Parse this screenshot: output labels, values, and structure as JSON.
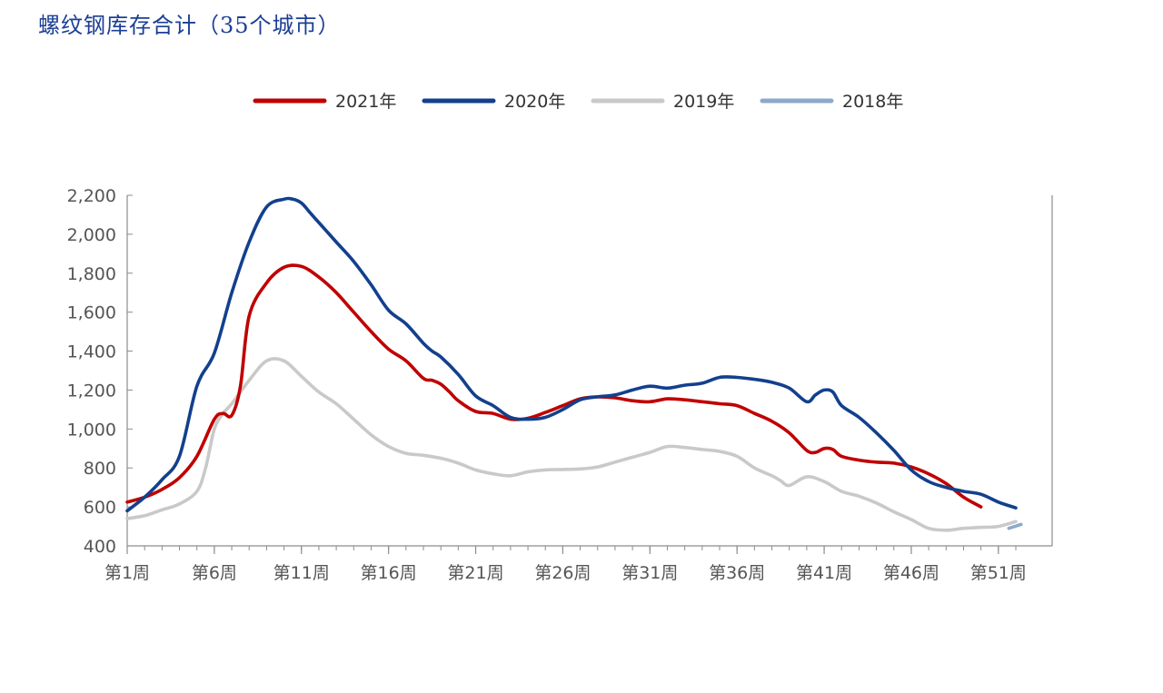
{
  "title": "螺纹钢库存合计（35个城市）",
  "colors": {
    "2021年": "#c00000",
    "2020年": "#12408d",
    "2019年": "#c9c9c9",
    "2018年": "#8da9cc"
  },
  "chart_data": {
    "type": "line",
    "title": "螺纹钢库存合计（35个城市）",
    "ylim": [
      400,
      2200
    ],
    "xlim": [
      1,
      52
    ],
    "grid": false,
    "legend_position": "top-center",
    "y_ticks": [
      {
        "value": 400,
        "label": "400"
      },
      {
        "value": 600,
        "label": "600"
      },
      {
        "value": 800,
        "label": "800"
      },
      {
        "value": 1000,
        "label": "1,000"
      },
      {
        "value": 1200,
        "label": "1,200"
      },
      {
        "value": 1400,
        "label": "1,400"
      },
      {
        "value": 1600,
        "label": "1,600"
      },
      {
        "value": 1800,
        "label": "1,800"
      },
      {
        "value": 2000,
        "label": "2,000"
      },
      {
        "value": 2200,
        "label": "2,200"
      }
    ],
    "x_ticks": [
      {
        "value": 1,
        "label": "第1周"
      },
      {
        "value": 6,
        "label": "第6周"
      },
      {
        "value": 11,
        "label": "第11周"
      },
      {
        "value": 16,
        "label": "第16周"
      },
      {
        "value": 21,
        "label": "第21周"
      },
      {
        "value": 26,
        "label": "第26周"
      },
      {
        "value": 31,
        "label": "第31周"
      },
      {
        "value": 36,
        "label": "第36周"
      },
      {
        "value": 41,
        "label": "第41周"
      },
      {
        "value": 46,
        "label": "第46周"
      },
      {
        "value": 51,
        "label": "第51周"
      }
    ],
    "series": [
      {
        "name": "2021年",
        "x": [
          1,
          2,
          3,
          4,
          5,
          6,
          6.5,
          7,
          7.5,
          8,
          9,
          10,
          11,
          12,
          13,
          14,
          15,
          16,
          17,
          18,
          18.5,
          19,
          19.5,
          20,
          21,
          22,
          23,
          24,
          25,
          26,
          27,
          28,
          29,
          30,
          31,
          32,
          33,
          34,
          35,
          36,
          37,
          38,
          39,
          40,
          40.5,
          41,
          41.5,
          42,
          43,
          44,
          45,
          46,
          47,
          48,
          49,
          50
        ],
        "values": [
          625,
          650,
          690,
          750,
          860,
          1050,
          1080,
          1070,
          1220,
          1580,
          1750,
          1830,
          1835,
          1780,
          1700,
          1600,
          1500,
          1410,
          1350,
          1260,
          1250,
          1230,
          1190,
          1145,
          1090,
          1080,
          1050,
          1055,
          1085,
          1120,
          1155,
          1165,
          1160,
          1145,
          1140,
          1155,
          1150,
          1140,
          1130,
          1120,
          1080,
          1040,
          980,
          890,
          880,
          900,
          895,
          860,
          840,
          830,
          825,
          805,
          770,
          720,
          650,
          600
        ]
      },
      {
        "name": "2020年",
        "x": [
          1,
          2,
          3,
          4,
          5,
          6,
          7,
          8,
          9,
          10,
          10.5,
          11,
          11.5,
          12,
          13,
          14,
          15,
          16,
          17,
          18,
          18.5,
          19,
          20,
          21,
          22,
          23,
          24,
          25,
          26,
          27,
          28,
          29,
          30,
          31,
          32,
          33,
          34,
          35,
          36,
          37,
          38,
          39,
          40,
          40.5,
          41,
          41.5,
          42,
          43,
          44,
          45,
          46,
          47,
          48,
          49,
          50,
          51,
          52
        ],
        "values": [
          580,
          650,
          740,
          860,
          1220,
          1390,
          1700,
          1960,
          2140,
          2180,
          2180,
          2160,
          2110,
          2060,
          1960,
          1860,
          1740,
          1610,
          1540,
          1440,
          1400,
          1370,
          1280,
          1170,
          1120,
          1060,
          1050,
          1060,
          1100,
          1150,
          1165,
          1175,
          1200,
          1220,
          1210,
          1225,
          1235,
          1265,
          1265,
          1255,
          1240,
          1210,
          1140,
          1175,
          1200,
          1190,
          1120,
          1060,
          980,
          890,
          790,
          730,
          700,
          680,
          665,
          625,
          595
        ]
      },
      {
        "name": "2019年",
        "x": [
          1,
          2,
          3,
          4,
          5,
          5.5,
          6,
          6.5,
          7,
          8,
          9,
          10,
          11,
          12,
          13,
          14,
          15,
          16,
          17,
          18,
          19,
          20,
          21,
          22,
          23,
          24,
          25,
          26,
          27,
          28,
          29,
          30,
          31,
          32,
          33,
          34,
          35,
          36,
          37,
          38,
          38.5,
          39,
          40,
          41,
          42,
          43,
          44,
          45,
          46,
          47,
          48,
          49,
          50,
          51,
          52
        ],
        "values": [
          540,
          555,
          585,
          615,
          680,
          800,
          1000,
          1080,
          1130,
          1250,
          1350,
          1350,
          1270,
          1190,
          1130,
          1050,
          970,
          910,
          875,
          865,
          850,
          825,
          790,
          770,
          760,
          780,
          790,
          792,
          795,
          805,
          830,
          855,
          880,
          910,
          905,
          895,
          885,
          860,
          800,
          760,
          735,
          710,
          755,
          730,
          680,
          655,
          620,
          575,
          535,
          490,
          480,
          490,
          495,
          500,
          525
        ]
      },
      {
        "name": "2018年",
        "x": [
          51.6,
          52.3
        ],
        "values": [
          490,
          510
        ]
      }
    ]
  }
}
